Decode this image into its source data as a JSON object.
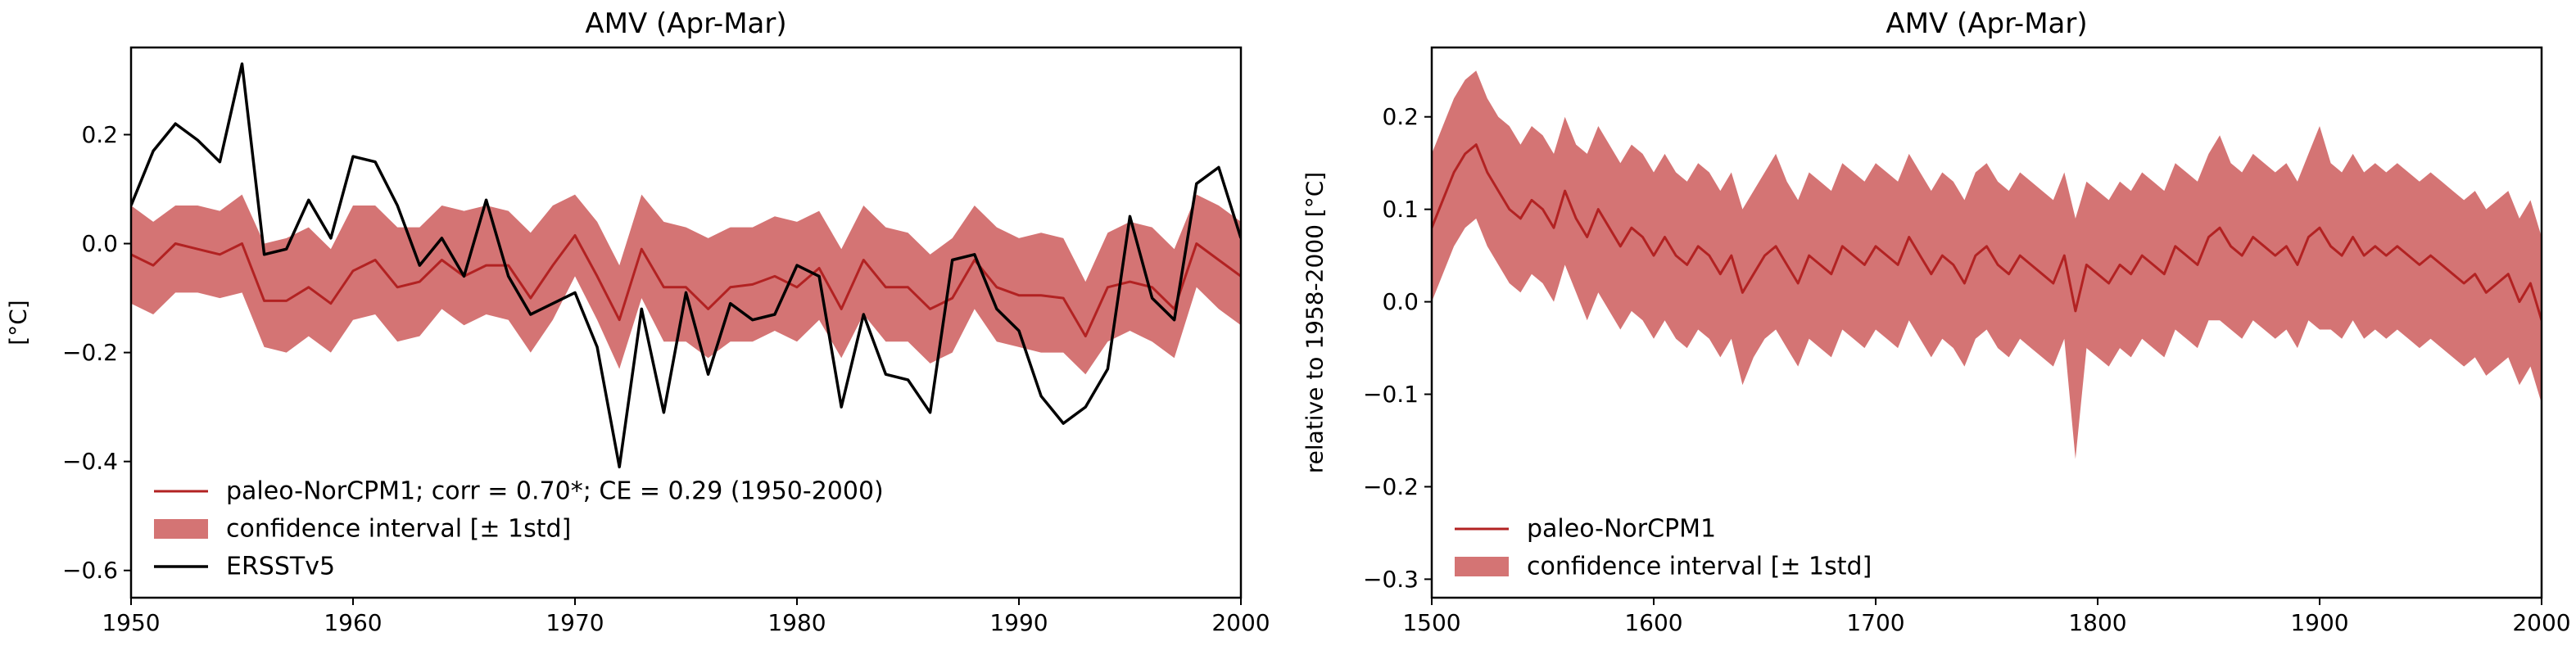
{
  "chart_data": [
    {
      "type": "line",
      "title": "AMV (Apr-Mar)",
      "xlabel": "",
      "ylabel": "[°C]",
      "xlim": [
        1950,
        2000
      ],
      "ylim": [
        -0.65,
        0.36
      ],
      "xticks": [
        1950,
        1960,
        1970,
        1980,
        1990,
        2000
      ],
      "yticks": [
        -0.6,
        -0.4,
        -0.2,
        0.0,
        0.2
      ],
      "xtick_labels": [
        "1950",
        "1960",
        "1970",
        "1980",
        "1990",
        "2000"
      ],
      "ytick_labels": [
        "−0.6",
        "−0.4",
        "−0.2",
        "0.0",
        "0.2"
      ],
      "legend_position": "lower-left",
      "legend": {
        "model": "paleo-NorCPM1; corr = 0.70*; CE = 0.29 (1950-2000)",
        "band": "confidence interval [± 1std]",
        "obs": "ERSSTv5"
      },
      "colors": {
        "model": "#b22222",
        "band": "#d47474",
        "obs": "#000000"
      },
      "x": [
        1950,
        1951,
        1952,
        1953,
        1954,
        1955,
        1956,
        1957,
        1958,
        1959,
        1960,
        1961,
        1962,
        1963,
        1964,
        1965,
        1966,
        1967,
        1968,
        1969,
        1970,
        1971,
        1972,
        1973,
        1974,
        1975,
        1976,
        1977,
        1978,
        1979,
        1980,
        1981,
        1982,
        1983,
        1984,
        1985,
        1986,
        1987,
        1988,
        1989,
        1990,
        1991,
        1992,
        1993,
        1994,
        1995,
        1996,
        1997,
        1998,
        1999,
        2000
      ],
      "series": [
        {
          "name": "paleo-NorCPM1; corr = 0.70*; CE = 0.29 (1950-2000)",
          "role": "model",
          "values": [
            -0.02,
            -0.04,
            0.0,
            -0.01,
            -0.02,
            0.0,
            -0.105,
            -0.105,
            -0.08,
            -0.11,
            -0.05,
            -0.03,
            -0.08,
            -0.07,
            -0.03,
            -0.06,
            -0.04,
            -0.04,
            -0.1,
            -0.04,
            0.015,
            -0.06,
            -0.14,
            -0.01,
            -0.08,
            -0.08,
            -0.12,
            -0.08,
            -0.075,
            -0.06,
            -0.08,
            -0.045,
            -0.12,
            -0.03,
            -0.08,
            -0.08,
            -0.12,
            -0.1,
            -0.03,
            -0.08,
            -0.095,
            -0.095,
            -0.1,
            -0.17,
            -0.08,
            -0.07,
            -0.08,
            -0.12,
            0.0,
            -0.03,
            -0.06
          ],
          "upper": [
            0.07,
            0.04,
            0.07,
            0.07,
            0.06,
            0.09,
            0.0,
            0.01,
            0.03,
            -0.01,
            0.07,
            0.07,
            0.03,
            0.03,
            0.07,
            0.06,
            0.07,
            0.06,
            0.02,
            0.07,
            0.09,
            0.04,
            -0.04,
            0.09,
            0.04,
            0.03,
            0.01,
            0.03,
            0.03,
            0.05,
            0.04,
            0.06,
            -0.01,
            0.07,
            0.03,
            0.02,
            -0.02,
            0.01,
            0.07,
            0.03,
            0.01,
            0.02,
            0.01,
            -0.07,
            0.02,
            0.04,
            0.03,
            -0.01,
            0.09,
            0.07,
            0.04
          ],
          "lower": [
            -0.11,
            -0.13,
            -0.09,
            -0.09,
            -0.1,
            -0.09,
            -0.19,
            -0.2,
            -0.17,
            -0.2,
            -0.14,
            -0.13,
            -0.18,
            -0.17,
            -0.12,
            -0.15,
            -0.13,
            -0.14,
            -0.2,
            -0.14,
            -0.06,
            -0.14,
            -0.23,
            -0.1,
            -0.18,
            -0.18,
            -0.21,
            -0.18,
            -0.18,
            -0.16,
            -0.18,
            -0.14,
            -0.21,
            -0.13,
            -0.18,
            -0.18,
            -0.22,
            -0.2,
            -0.12,
            -0.18,
            -0.19,
            -0.2,
            -0.2,
            -0.24,
            -0.18,
            -0.16,
            -0.18,
            -0.21,
            -0.08,
            -0.12,
            -0.15
          ]
        },
        {
          "name": "ERSSTv5",
          "role": "obs",
          "values": [
            0.07,
            0.17,
            0.22,
            0.19,
            0.15,
            0.33,
            -0.02,
            -0.01,
            0.08,
            0.01,
            0.16,
            0.15,
            0.07,
            -0.04,
            0.01,
            -0.06,
            0.08,
            -0.06,
            -0.13,
            -0.11,
            -0.09,
            -0.19,
            -0.41,
            -0.12,
            -0.31,
            -0.09,
            -0.24,
            -0.11,
            -0.14,
            -0.13,
            -0.04,
            -0.06,
            -0.3,
            -0.13,
            -0.24,
            -0.25,
            -0.31,
            -0.03,
            -0.02,
            -0.12,
            -0.16,
            -0.28,
            -0.33,
            -0.3,
            -0.23,
            0.05,
            -0.1,
            -0.14,
            0.11,
            0.14,
            0.01
          ]
        }
      ]
    },
    {
      "type": "line",
      "title": "AMV (Apr-Mar)",
      "xlabel": "",
      "ylabel": "relative to 1958-2000 [°C]",
      "xlim": [
        1500,
        2000
      ],
      "ylim": [
        -0.32,
        0.275
      ],
      "xticks": [
        1500,
        1600,
        1700,
        1800,
        1900,
        2000
      ],
      "yticks": [
        -0.3,
        -0.2,
        -0.1,
        0.0,
        0.1,
        0.2
      ],
      "xtick_labels": [
        "1500",
        "1600",
        "1700",
        "1800",
        "1900",
        "2000"
      ],
      "ytick_labels": [
        "−0.3",
        "−0.2",
        "−0.1",
        "0.0",
        "0.1",
        "0.2"
      ],
      "legend_position": "lower-left",
      "legend": {
        "model": "paleo-NorCPM1",
        "band": "confidence interval [± 1std]"
      },
      "colors": {
        "model": "#b22222",
        "band": "#d47474"
      },
      "x": [
        1500,
        1505,
        1510,
        1515,
        1520,
        1525,
        1530,
        1535,
        1540,
        1545,
        1550,
        1555,
        1560,
        1565,
        1570,
        1575,
        1580,
        1585,
        1590,
        1595,
        1600,
        1605,
        1610,
        1615,
        1620,
        1625,
        1630,
        1635,
        1640,
        1645,
        1650,
        1655,
        1660,
        1665,
        1670,
        1675,
        1680,
        1685,
        1690,
        1695,
        1700,
        1705,
        1710,
        1715,
        1720,
        1725,
        1730,
        1735,
        1740,
        1745,
        1750,
        1755,
        1760,
        1765,
        1770,
        1775,
        1780,
        1785,
        1790,
        1795,
        1800,
        1805,
        1810,
        1815,
        1820,
        1825,
        1830,
        1835,
        1840,
        1845,
        1850,
        1855,
        1860,
        1865,
        1870,
        1875,
        1880,
        1885,
        1890,
        1895,
        1900,
        1905,
        1910,
        1915,
        1920,
        1925,
        1930,
        1935,
        1940,
        1945,
        1950,
        1955,
        1960,
        1965,
        1970,
        1975,
        1980,
        1985,
        1990,
        1995,
        2000
      ],
      "series": [
        {
          "name": "paleo-NorCPM1",
          "role": "model",
          "values": [
            0.08,
            0.11,
            0.14,
            0.16,
            0.17,
            0.14,
            0.12,
            0.1,
            0.09,
            0.11,
            0.1,
            0.08,
            0.12,
            0.09,
            0.07,
            0.1,
            0.08,
            0.06,
            0.08,
            0.07,
            0.05,
            0.07,
            0.05,
            0.04,
            0.06,
            0.05,
            0.03,
            0.05,
            0.01,
            0.03,
            0.05,
            0.06,
            0.04,
            0.02,
            0.05,
            0.04,
            0.03,
            0.06,
            0.05,
            0.04,
            0.06,
            0.05,
            0.04,
            0.07,
            0.05,
            0.03,
            0.05,
            0.04,
            0.02,
            0.05,
            0.06,
            0.04,
            0.03,
            0.05,
            0.04,
            0.03,
            0.02,
            0.05,
            -0.01,
            0.04,
            0.03,
            0.02,
            0.04,
            0.03,
            0.05,
            0.04,
            0.03,
            0.06,
            0.05,
            0.04,
            0.07,
            0.08,
            0.06,
            0.05,
            0.07,
            0.06,
            0.05,
            0.06,
            0.04,
            0.07,
            0.08,
            0.06,
            0.05,
            0.07,
            0.05,
            0.06,
            0.05,
            0.06,
            0.05,
            0.04,
            0.05,
            0.04,
            0.03,
            0.02,
            0.03,
            0.01,
            0.02,
            0.03,
            0.0,
            0.02,
            -0.02
          ],
          "upper": [
            0.16,
            0.19,
            0.22,
            0.24,
            0.25,
            0.22,
            0.2,
            0.19,
            0.17,
            0.19,
            0.18,
            0.16,
            0.2,
            0.17,
            0.16,
            0.19,
            0.17,
            0.15,
            0.17,
            0.16,
            0.14,
            0.16,
            0.14,
            0.13,
            0.15,
            0.14,
            0.12,
            0.14,
            0.1,
            0.12,
            0.14,
            0.16,
            0.13,
            0.11,
            0.14,
            0.13,
            0.12,
            0.15,
            0.14,
            0.13,
            0.15,
            0.14,
            0.13,
            0.16,
            0.14,
            0.12,
            0.14,
            0.13,
            0.11,
            0.14,
            0.15,
            0.13,
            0.12,
            0.14,
            0.13,
            0.12,
            0.11,
            0.14,
            0.09,
            0.13,
            0.12,
            0.11,
            0.13,
            0.12,
            0.14,
            0.13,
            0.12,
            0.15,
            0.14,
            0.13,
            0.16,
            0.18,
            0.15,
            0.14,
            0.16,
            0.15,
            0.14,
            0.15,
            0.13,
            0.16,
            0.19,
            0.15,
            0.14,
            0.16,
            0.14,
            0.15,
            0.14,
            0.15,
            0.14,
            0.13,
            0.14,
            0.13,
            0.12,
            0.11,
            0.12,
            0.1,
            0.11,
            0.12,
            0.09,
            0.11,
            0.07
          ],
          "lower": [
            0.0,
            0.03,
            0.06,
            0.08,
            0.09,
            0.06,
            0.04,
            0.02,
            0.01,
            0.03,
            0.02,
            0.0,
            0.04,
            0.01,
            -0.02,
            0.01,
            -0.01,
            -0.03,
            -0.01,
            -0.02,
            -0.04,
            -0.02,
            -0.04,
            -0.05,
            -0.03,
            -0.04,
            -0.06,
            -0.04,
            -0.09,
            -0.06,
            -0.04,
            -0.03,
            -0.05,
            -0.07,
            -0.04,
            -0.05,
            -0.06,
            -0.03,
            -0.04,
            -0.05,
            -0.03,
            -0.04,
            -0.05,
            -0.02,
            -0.04,
            -0.06,
            -0.04,
            -0.05,
            -0.07,
            -0.04,
            -0.03,
            -0.05,
            -0.06,
            -0.04,
            -0.05,
            -0.06,
            -0.07,
            -0.04,
            -0.17,
            -0.05,
            -0.06,
            -0.07,
            -0.05,
            -0.06,
            -0.04,
            -0.05,
            -0.06,
            -0.03,
            -0.04,
            -0.05,
            -0.02,
            -0.02,
            -0.03,
            -0.04,
            -0.02,
            -0.03,
            -0.04,
            -0.03,
            -0.05,
            -0.02,
            -0.03,
            -0.03,
            -0.04,
            -0.02,
            -0.04,
            -0.03,
            -0.04,
            -0.03,
            -0.04,
            -0.05,
            -0.04,
            -0.05,
            -0.06,
            -0.07,
            -0.06,
            -0.08,
            -0.07,
            -0.06,
            -0.09,
            -0.07,
            -0.11
          ]
        }
      ]
    }
  ]
}
